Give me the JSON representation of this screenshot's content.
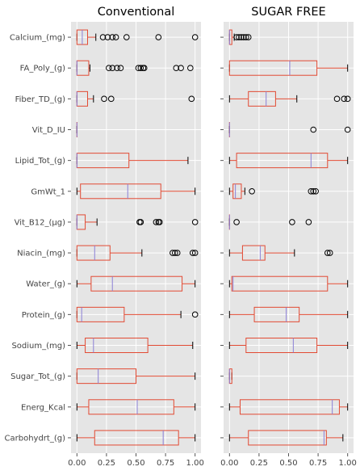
{
  "chart_data": {
    "type": "boxplot",
    "categories": [
      "Calcium_(mg)",
      "FA_Poly_(g)",
      "Fiber_TD_(g)",
      "Vit_D_IU",
      "Lipid_Tot_(g)",
      "GmWt_1",
      "Vit_B12_(µg)",
      "Niacin_(mg)",
      "Water_(g)",
      "Protein_(g)",
      "Sodium_(mg)",
      "Sugar_Tot_(g)",
      "Energ_Kcal",
      "Carbohydrt_(g)"
    ],
    "xlim": [
      -0.05,
      1.05
    ],
    "xticks": [
      "0.00",
      "0.25",
      "0.50",
      "0.75",
      "1.00"
    ],
    "xtick_values": [
      0,
      0.25,
      0.5,
      0.75,
      1.0
    ],
    "grid": true,
    "colors": {
      "box": "#e24a33",
      "median": "#8b7fd6",
      "panel": "#e5e5e5",
      "grid": "#ffffff"
    },
    "panels": [
      {
        "title": "Conventional",
        "boxes": [
          {
            "whislo": 0.0,
            "q1": 0.0,
            "med": 0.045,
            "q3": 0.09,
            "whishi": 0.16,
            "fliers": [
              0.22,
              0.26,
              0.3,
              0.33,
              0.42,
              0.69,
              1.0
            ]
          },
          {
            "whislo": 0.0,
            "q1": 0.0,
            "med": 0.0,
            "q3": 0.1,
            "whishi": 0.11,
            "fliers": [
              0.27,
              0.3,
              0.34,
              0.37,
              0.52,
              0.54,
              0.56,
              0.57,
              0.84,
              0.88,
              0.96
            ]
          },
          {
            "whislo": 0.0,
            "q1": 0.0,
            "med": 0.0,
            "q3": 0.09,
            "whishi": 0.14,
            "fliers": [
              0.23,
              0.29,
              0.97
            ]
          },
          {
            "whislo": 0.0,
            "q1": 0.0,
            "med": 0.0,
            "q3": 0.0,
            "whishi": 0.0,
            "fliers": []
          },
          {
            "whislo": 0.0,
            "q1": 0.0,
            "med": 0.0,
            "q3": 0.44,
            "whishi": 0.94,
            "fliers": []
          },
          {
            "whislo": 0.0,
            "q1": 0.03,
            "med": 0.43,
            "q3": 0.71,
            "whishi": 1.0,
            "fliers": []
          },
          {
            "whislo": 0.0,
            "q1": 0.0,
            "med": 0.0,
            "q3": 0.07,
            "whishi": 0.17,
            "fliers": [
              0.53,
              0.54,
              0.67,
              0.69,
              0.7,
              1.0
            ]
          },
          {
            "whislo": 0.0,
            "q1": 0.0,
            "med": 0.15,
            "q3": 0.28,
            "whishi": 0.55,
            "fliers": [
              0.81,
              0.83,
              0.85,
              0.98,
              1.0
            ]
          },
          {
            "whislo": 0.0,
            "q1": 0.12,
            "med": 0.3,
            "q3": 0.89,
            "whishi": 1.0,
            "fliers": []
          },
          {
            "whislo": 0.0,
            "q1": 0.0,
            "med": 0.04,
            "q3": 0.4,
            "whishi": 0.88,
            "fliers": [
              1.0
            ]
          },
          {
            "whislo": 0.0,
            "q1": 0.07,
            "med": 0.14,
            "q3": 0.6,
            "whishi": 0.98,
            "fliers": []
          },
          {
            "whislo": 0.0,
            "q1": 0.0,
            "med": 0.18,
            "q3": 0.5,
            "whishi": 1.0,
            "fliers": []
          },
          {
            "whislo": 0.0,
            "q1": 0.1,
            "med": 0.51,
            "q3": 0.82,
            "whishi": 1.0,
            "fliers": []
          },
          {
            "whislo": 0.0,
            "q1": 0.15,
            "med": 0.73,
            "q3": 0.86,
            "whishi": 1.0,
            "fliers": []
          }
        ]
      },
      {
        "title": "SUGAR FREE",
        "boxes": [
          {
            "whislo": 0.0,
            "q1": 0.0,
            "med": 0.0,
            "q3": 0.02,
            "whishi": 0.04,
            "fliers": [
              0.06,
              0.08,
              0.1,
              0.12,
              0.14,
              0.16
            ]
          },
          {
            "whislo": 0.0,
            "q1": 0.0,
            "med": 0.51,
            "q3": 0.74,
            "whishi": 1.0,
            "fliers": []
          },
          {
            "whislo": 0.0,
            "q1": 0.16,
            "med": 0.31,
            "q3": 0.39,
            "whishi": 0.57,
            "fliers": [
              0.91,
              0.97,
              1.0
            ]
          },
          {
            "whislo": 0.0,
            "q1": 0.0,
            "med": 0.0,
            "q3": 0.0,
            "whishi": 0.0,
            "fliers": [
              0.71,
              1.0
            ]
          },
          {
            "whislo": 0.0,
            "q1": 0.06,
            "med": 0.69,
            "q3": 0.83,
            "whishi": 1.0,
            "fliers": []
          },
          {
            "whislo": 0.0,
            "q1": 0.03,
            "med": 0.05,
            "q3": 0.1,
            "whishi": 0.13,
            "fliers": [
              0.19,
              0.69,
              0.71,
              0.73
            ]
          },
          {
            "whislo": 0.0,
            "q1": 0.0,
            "med": 0.0,
            "q3": 0.0,
            "whishi": 0.0,
            "fliers": [
              0.06,
              0.53,
              0.67
            ]
          },
          {
            "whislo": 0.0,
            "q1": 0.11,
            "med": 0.26,
            "q3": 0.3,
            "whishi": 0.55,
            "fliers": [
              0.83,
              0.85
            ]
          },
          {
            "whislo": 0.0,
            "q1": 0.02,
            "med": 0.03,
            "q3": 0.83,
            "whishi": 1.0,
            "fliers": []
          },
          {
            "whislo": 0.0,
            "q1": 0.21,
            "med": 0.48,
            "q3": 0.59,
            "whishi": 1.0,
            "fliers": []
          },
          {
            "whislo": 0.0,
            "q1": 0.14,
            "med": 0.54,
            "q3": 0.74,
            "whishi": 1.0,
            "fliers": []
          },
          {
            "whislo": 0.0,
            "q1": 0.0,
            "med": 0.0,
            "q3": 0.02,
            "whishi": 0.02,
            "fliers": []
          },
          {
            "whislo": 0.0,
            "q1": 0.09,
            "med": 0.87,
            "q3": 0.93,
            "whishi": 1.0,
            "fliers": []
          },
          {
            "whislo": 0.0,
            "q1": 0.16,
            "med": 0.8,
            "q3": 0.82,
            "whishi": 0.96,
            "fliers": []
          }
        ]
      }
    ]
  }
}
